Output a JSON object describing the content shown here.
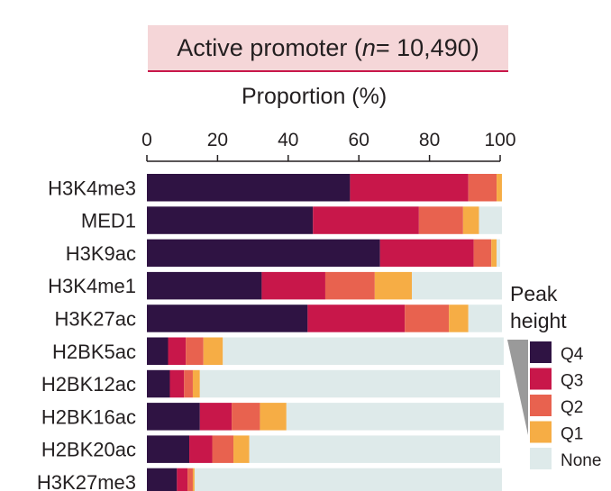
{
  "chart_data": {
    "type": "bar",
    "orientation": "horizontal",
    "stacked": true,
    "title_prefix": "Active promoter (",
    "title_var": "n",
    "title_suffix": " = 10,490)",
    "xlabel": "Proportion (%)",
    "xlim": [
      0,
      100
    ],
    "xticks": [
      0,
      20,
      40,
      60,
      80,
      100
    ],
    "categories": [
      "H3K4me3",
      "MED1",
      "H3K9ac",
      "H3K4me1",
      "H3K27ac",
      "H2BK5ac",
      "H2BK12ac",
      "H2BK16ac",
      "H2BK20ac",
      "H3K27me3"
    ],
    "series": [
      {
        "name": "Q4",
        "color": "#2f1343",
        "values": [
          57.5,
          47,
          66,
          32.5,
          45.5,
          6,
          6.5,
          15,
          12,
          8.5
        ]
      },
      {
        "name": "Q3",
        "color": "#c8174a",
        "values": [
          33.5,
          30,
          26.5,
          18,
          27.5,
          5,
          4,
          9,
          6.5,
          3
        ]
      },
      {
        "name": "Q2",
        "color": "#e8624f",
        "values": [
          8,
          12.5,
          5,
          14,
          12.5,
          5,
          2.5,
          8,
          6,
          1.5
        ]
      },
      {
        "name": "Q1",
        "color": "#f6ad45",
        "values": [
          1.5,
          4.5,
          1.5,
          10.5,
          5.5,
          5.5,
          2,
          7.5,
          4.5,
          0.5
        ]
      },
      {
        "name": "None",
        "color": "#deeaea",
        "values": [
          0,
          6.5,
          1,
          25.5,
          9.5,
          79.5,
          85,
          61.5,
          71,
          87
        ]
      }
    ],
    "legend": {
      "title_line1": "Peak",
      "title_line2": "height",
      "entries": [
        "Q4",
        "Q3",
        "Q2",
        "Q1",
        "None"
      ],
      "placement": "right"
    }
  }
}
